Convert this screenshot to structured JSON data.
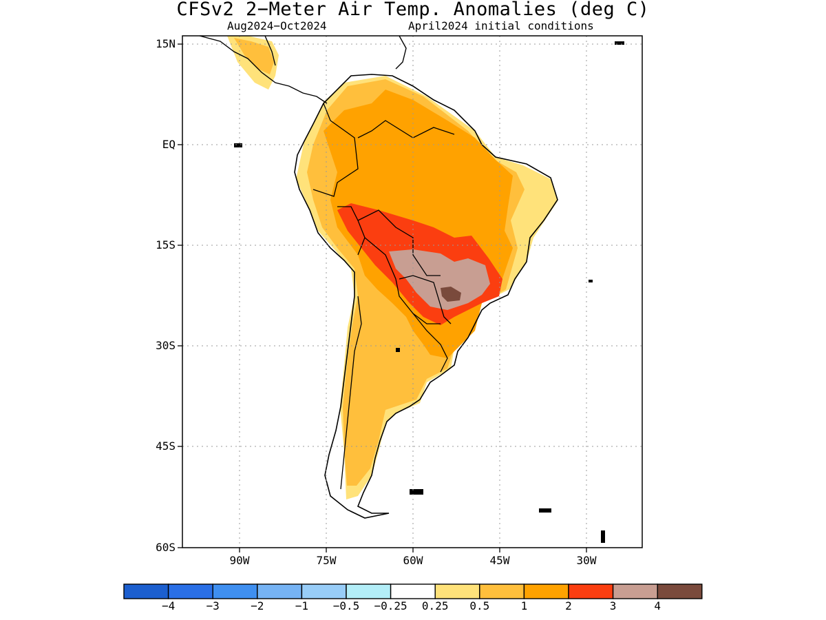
{
  "title": "CFSv2 2−Meter Air Temp. Anomalies (deg C)",
  "period": "Aug2024−Oct2024",
  "init": "April2024 initial conditions",
  "lat_ticks": [
    "15N",
    "EQ",
    "15S",
    "30S",
    "45S",
    "60S"
  ],
  "lon_ticks": [
    "90W",
    "75W",
    "60W",
    "45W",
    "30W"
  ],
  "colorbar": {
    "colors": [
      "#1c5fcf",
      "#2a6fe6",
      "#3f8ff0",
      "#76b3f4",
      "#98cdf8",
      "#b3eef8",
      "#ffffff",
      "#ffe27a",
      "#ffbf3c",
      "#ffa200",
      "#fb3e10",
      "#c89e92",
      "#7a4a3c"
    ],
    "labels": [
      "−4",
      "−3",
      "−2",
      "−1",
      "−0.5",
      "−0.25",
      "0.25",
      "0.5",
      "1",
      "2",
      "3",
      "4"
    ]
  },
  "anomaly_colors": {
    "c05": "#ffe27a",
    "c1": "#ffbf3c",
    "c2": "#ffa200",
    "c3": "#fb3e10",
    "c4": "#c89e92",
    "c5": "#7a4a3c"
  }
}
